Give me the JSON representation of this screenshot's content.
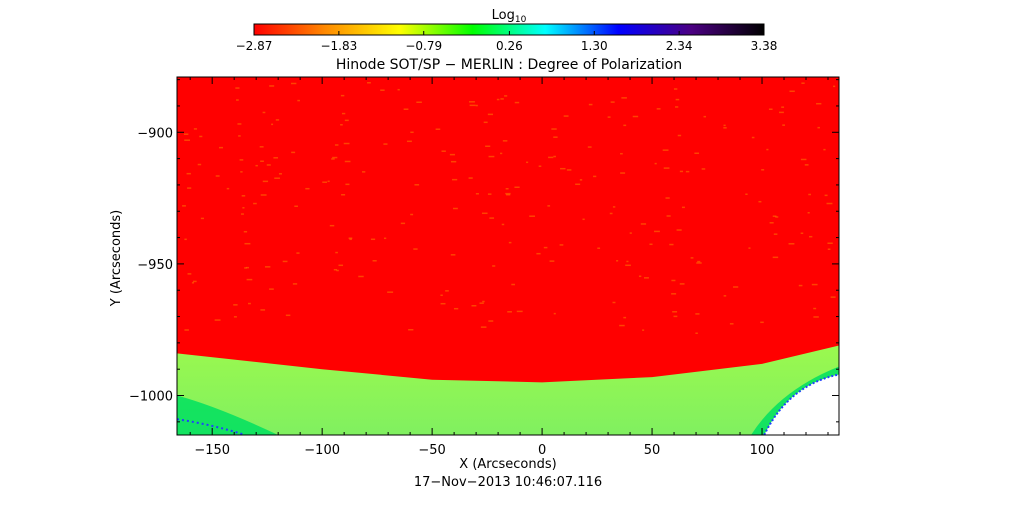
{
  "chart_data": {
    "type": "heatmap",
    "title": "Hinode SOT/SP − MERLIN : Degree of Polarization",
    "xlabel": "X (Arcseconds)",
    "ylabel": "Y (Arcseconds)",
    "timestamp": "17−Nov−2013 10:46:07.116",
    "xlim": [
      -166,
      135
    ],
    "ylim": [
      -1015,
      -879
    ],
    "x_ticks": [
      -150,
      -100,
      -50,
      0,
      50,
      100
    ],
    "x_tick_labels": [
      "−150",
      "−100",
      "−50",
      "0",
      "50",
      "100"
    ],
    "y_ticks": [
      -900,
      -950,
      -1000
    ],
    "y_tick_labels": [
      "−900",
      "−950",
      "−1000"
    ],
    "colorbar": {
      "label_base": "Log",
      "label_sub": "10",
      "min": -2.87,
      "max": 3.38,
      "ticks": [
        -2.87,
        -1.83,
        -0.79,
        0.26,
        1.3,
        2.34,
        3.38
      ],
      "tick_labels": [
        "−2.87",
        "−1.83",
        "−0.79",
        "0.26",
        "1.30",
        "2.34",
        "3.38"
      ],
      "colors": [
        "#ff0000",
        "#ff8c00",
        "#ffff00",
        "#00ff00",
        "#00ffff",
        "#0000ff",
        "#4b0082",
        "#000000"
      ]
    },
    "regions": [
      {
        "name": "disk",
        "value": -2.87,
        "color": "#ff0000"
      },
      {
        "name": "limb-band",
        "value": -0.79,
        "color": "#a0ff40"
      },
      {
        "name": "off-limb-edge",
        "value": 0.26,
        "color": "#00e060"
      },
      {
        "name": "no-data",
        "color": "#ffffff"
      }
    ],
    "limb_y": [
      [
        -166,
        -984
      ],
      [
        -100,
        -990
      ],
      [
        -50,
        -994
      ],
      [
        0,
        -995
      ],
      [
        50,
        -993
      ],
      [
        100,
        -988
      ],
      [
        135,
        -981
      ]
    ]
  }
}
